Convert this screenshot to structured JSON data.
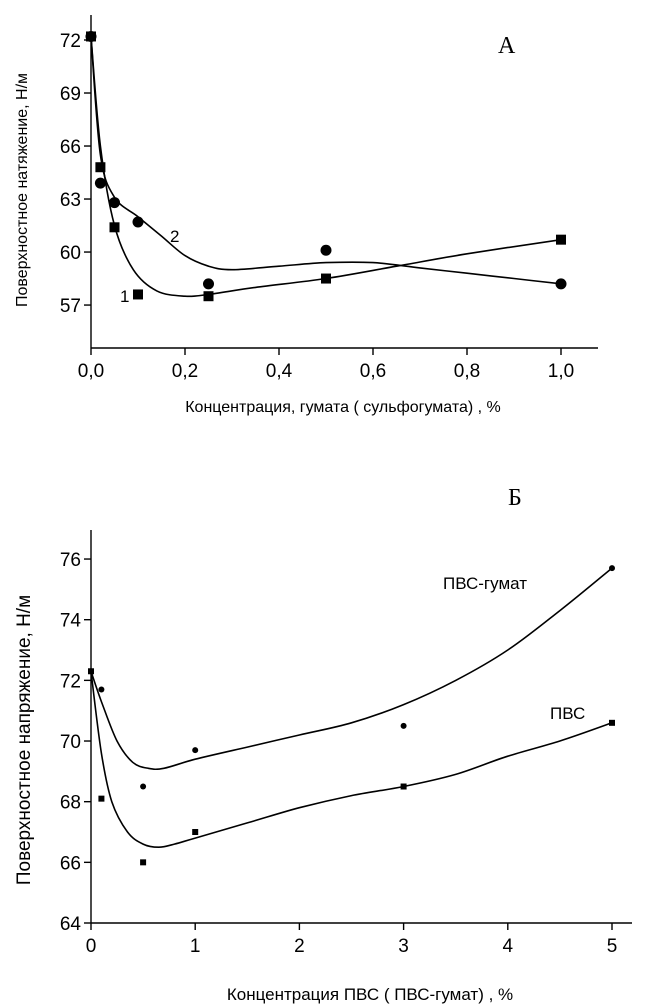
{
  "chart_data": [
    {
      "type": "scatter",
      "panel": "А",
      "xlabel": "Концентрация, гумата  ( сульфогумата)  , %",
      "ylabel": "Поверхностное натяжение, Н/м",
      "xlim": [
        0,
        1.1
      ],
      "ylim": [
        55,
        74
      ],
      "xticks": [
        0,
        0.2,
        0.4,
        0.6,
        0.8,
        1.0
      ],
      "xtick_labels": [
        "0,0",
        "0,2",
        "0,4",
        "0,6",
        "0,8",
        "1,0"
      ],
      "yticks": [
        57,
        60,
        63,
        66,
        69,
        72
      ],
      "ytick_labels": [
        "57",
        "60",
        "63",
        "66",
        "69",
        "72"
      ],
      "series": [
        {
          "name": "1",
          "marker": "square",
          "x": [
            0,
            0.02,
            0.05,
            0.1,
            0.25,
            0.5,
            1.0
          ],
          "y": [
            72.2,
            64.8,
            61.4,
            57.6,
            57.5,
            58.5,
            60.7
          ],
          "curve_x": [
            0,
            0.02,
            0.05,
            0.09,
            0.14,
            0.2,
            0.25,
            0.35,
            0.5,
            0.65,
            0.8,
            1.0
          ],
          "curve_y": [
            72.2,
            66.0,
            61.5,
            59.0,
            57.8,
            57.5,
            57.6,
            58.0,
            58.5,
            59.2,
            59.9,
            60.7
          ]
        },
        {
          "name": "2",
          "marker": "circle",
          "x": [
            0,
            0.02,
            0.05,
            0.1,
            0.25,
            0.5,
            1.0
          ],
          "y": [
            72.2,
            63.9,
            62.8,
            61.7,
            58.2,
            60.1,
            58.2
          ],
          "curve_x": [
            0,
            0.02,
            0.05,
            0.1,
            0.15,
            0.2,
            0.25,
            0.3,
            0.4,
            0.5,
            0.6,
            0.7,
            0.8,
            0.9,
            1.0
          ],
          "curve_y": [
            72.2,
            65.5,
            63.1,
            62.0,
            60.9,
            59.8,
            59.2,
            59.0,
            59.2,
            59.4,
            59.4,
            59.1,
            58.8,
            58.5,
            58.2
          ]
        }
      ]
    },
    {
      "type": "scatter",
      "panel": "Б",
      "xlabel": "Концентрация ПВС  ( ПВС-гумат)  , %",
      "ylabel": "Поверхностное напряжение, Н/м",
      "xlim": [
        0,
        5.2
      ],
      "ylim": [
        64,
        77
      ],
      "xticks": [
        0,
        1,
        2,
        3,
        4,
        5
      ],
      "xtick_labels": [
        "0",
        "1",
        "2",
        "3",
        "4",
        "5"
      ],
      "yticks": [
        64,
        66,
        68,
        70,
        72,
        74,
        76
      ],
      "ytick_labels": [
        "64",
        "66",
        "68",
        "70",
        "72",
        "74",
        "76"
      ],
      "series": [
        {
          "name": "ПВС-гумат",
          "marker": "circle",
          "x": [
            0,
            0.1,
            0.5,
            1,
            3,
            5
          ],
          "y": [
            72.3,
            71.7,
            68.5,
            69.7,
            70.5,
            75.7
          ],
          "curve_x": [
            0,
            0.1,
            0.25,
            0.4,
            0.55,
            0.7,
            1,
            1.5,
            2,
            2.5,
            3,
            3.5,
            4,
            4.5,
            5
          ],
          "curve_y": [
            72.3,
            71.3,
            70.0,
            69.3,
            69.1,
            69.1,
            69.4,
            69.8,
            70.2,
            70.6,
            71.2,
            72.0,
            73.0,
            74.3,
            75.7
          ]
        },
        {
          "name": "ПВС",
          "marker": "square",
          "x": [
            0,
            0.1,
            0.5,
            1,
            3,
            5
          ],
          "y": [
            72.3,
            68.1,
            66.0,
            67.0,
            68.5,
            70.6
          ],
          "curve_x": [
            0,
            0.1,
            0.2,
            0.35,
            0.5,
            0.65,
            0.8,
            1,
            1.5,
            2,
            2.5,
            3,
            3.5,
            4,
            4.5,
            5
          ],
          "curve_y": [
            72.3,
            69.6,
            68.0,
            67.0,
            66.6,
            66.5,
            66.6,
            66.8,
            67.3,
            67.8,
            68.2,
            68.5,
            68.9,
            69.5,
            70.0,
            70.6
          ]
        }
      ]
    }
  ]
}
